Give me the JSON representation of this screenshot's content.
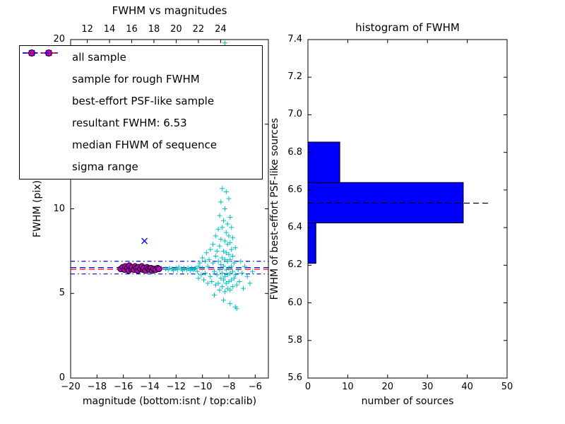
{
  "figure": {
    "background": "#ffffff"
  },
  "chart_data": [
    {
      "type": "scatter",
      "title": "FWHM vs magnitudes",
      "xlabel": "magnitude (bottom:isnt / top:calib)",
      "ylabel": "FWHM (pix)",
      "xlim": [
        -20,
        -5
      ],
      "ylim": [
        0,
        20
      ],
      "x_ticks": [
        -20,
        -18,
        -16,
        -14,
        -12,
        -10,
        -8,
        -6
      ],
      "x_tick_labels": [
        "−20",
        "−18",
        "−16",
        "−14",
        "−12",
        "−10",
        "−8",
        "−6"
      ],
      "y_ticks": [
        0,
        5,
        10,
        15,
        20
      ],
      "y_tick_labels": [
        "0",
        "5",
        "10",
        "15",
        "20"
      ],
      "top_axis_lim": [
        10.5,
        28.3
      ],
      "top_axis_ticks": [
        12,
        14,
        16,
        18,
        20,
        22,
        24
      ],
      "top_axis_tick_labels": [
        "12",
        "14",
        "16",
        "18",
        "20",
        "22",
        "24"
      ],
      "grid": false,
      "legend": {
        "position": "upper-left",
        "items": [
          {
            "label": "all sample",
            "type": "scatter-plus",
            "color": "#00bfbf"
          },
          {
            "label": "sample for rough FWHM",
            "type": "scatter-x",
            "color": "#0000ff"
          },
          {
            "label": "best-effort PSF-like sample",
            "type": "scatter-circle",
            "color": "#bf00bf",
            "edge_color": "#000000"
          },
          {
            "label": "resultant FWHM: 6.53",
            "type": "line-dashed",
            "color": "#0000ff"
          },
          {
            "label": "median FHWM of sequence",
            "type": "line-dashed",
            "color": "#ff0000"
          },
          {
            "label": "sigma range",
            "type": "line-dashdot",
            "color": "#0000ff"
          }
        ]
      },
      "lines": [
        {
          "name": "resultant FWHM",
          "y": 6.53,
          "color": "#0000ff",
          "style": "dashed"
        },
        {
          "name": "median FWHM of sequence",
          "y": 6.43,
          "color": "#ff0000",
          "style": "dashed"
        },
        {
          "name": "sigma range upper",
          "y": 6.9,
          "color": "#0000ff",
          "style": "dashdot"
        },
        {
          "name": "sigma range lower",
          "y": 6.15,
          "color": "#0000ff",
          "style": "dashdot"
        }
      ],
      "series": [
        {
          "name": "all sample",
          "marker": "plus",
          "color": "#00bfbf",
          "points": [
            [
              -16.1,
              6.4
            ],
            [
              -15.8,
              6.5
            ],
            [
              -15.5,
              6.45
            ],
            [
              -15.2,
              6.5
            ],
            [
              -14.9,
              6.4
            ],
            [
              -14.6,
              6.5
            ],
            [
              -14.3,
              6.45
            ],
            [
              -14.0,
              6.5
            ],
            [
              -13.7,
              6.4
            ],
            [
              -13.4,
              6.45
            ],
            [
              -13.1,
              6.5
            ],
            [
              -12.8,
              6.45
            ],
            [
              -12.6,
              6.4
            ],
            [
              -12.5,
              6.5
            ],
            [
              -12.3,
              6.45
            ],
            [
              -12.2,
              6.35
            ],
            [
              -12.0,
              6.5
            ],
            [
              -11.9,
              6.4
            ],
            [
              -11.8,
              6.55
            ],
            [
              -11.6,
              6.45
            ],
            [
              -11.5,
              6.35
            ],
            [
              -11.4,
              6.5
            ],
            [
              -11.2,
              6.4
            ],
            [
              -11.1,
              6.5
            ],
            [
              -11.0,
              6.45
            ],
            [
              -10.9,
              6.35
            ],
            [
              -10.8,
              6.5
            ],
            [
              -10.7,
              6.4
            ],
            [
              -10.6,
              6.45
            ],
            [
              -10.5,
              6.5
            ],
            [
              -10.4,
              6.3
            ],
            [
              -10.3,
              6.6
            ],
            [
              -10.3,
              5.9
            ],
            [
              -10.2,
              6.8
            ],
            [
              -10.1,
              6.1
            ],
            [
              -10.0,
              6.5
            ],
            [
              -10.0,
              7.1
            ],
            [
              -9.9,
              5.8
            ],
            [
              -9.8,
              6.9
            ],
            [
              -9.8,
              6.2
            ],
            [
              -9.7,
              7.4
            ],
            [
              -9.6,
              5.6
            ],
            [
              -9.6,
              6.6
            ],
            [
              -9.5,
              7.0
            ],
            [
              -9.5,
              12.6
            ],
            [
              -9.4,
              6.0
            ],
            [
              -9.4,
              7.6
            ],
            [
              -9.3,
              5.7
            ],
            [
              -9.2,
              6.8
            ],
            [
              -9.2,
              7.9
            ],
            [
              -9.1,
              6.3
            ],
            [
              -9.0,
              5.5
            ],
            [
              -9.0,
              7.2
            ],
            [
              -9.0,
              8.4
            ],
            [
              -9.1,
              4.9
            ],
            [
              -8.9,
              6.1
            ],
            [
              -8.9,
              7.5
            ],
            [
              -8.8,
              5.6
            ],
            [
              -8.8,
              6.9
            ],
            [
              -8.8,
              8.8
            ],
            [
              -8.7,
              5.2
            ],
            [
              -8.7,
              6.4
            ],
            [
              -8.7,
              7.8
            ],
            [
              -8.7,
              9.6
            ],
            [
              -8.6,
              5.9
            ],
            [
              -8.6,
              6.7
            ],
            [
              -8.6,
              8.2
            ],
            [
              -8.6,
              10.4
            ],
            [
              -8.5,
              5.4
            ],
            [
              -8.5,
              6.2
            ],
            [
              -8.5,
              7.1
            ],
            [
              -8.5,
              8.9
            ],
            [
              -8.5,
              11.2
            ],
            [
              -8.4,
              5.8
            ],
            [
              -8.4,
              6.6
            ],
            [
              -8.4,
              7.5
            ],
            [
              -8.4,
              9.3
            ],
            [
              -8.3,
              5.1
            ],
            [
              -8.3,
              6.0
            ],
            [
              -8.3,
              7.0
            ],
            [
              -8.3,
              8.1
            ],
            [
              -8.3,
              10.0
            ],
            [
              -8.2,
              5.6
            ],
            [
              -8.2,
              6.4
            ],
            [
              -8.2,
              7.4
            ],
            [
              -8.2,
              8.6
            ],
            [
              -8.2,
              11.0
            ],
            [
              -8.1,
              5.3
            ],
            [
              -8.1,
              6.1
            ],
            [
              -8.1,
              6.9
            ],
            [
              -8.1,
              7.9
            ],
            [
              -8.1,
              9.1
            ],
            [
              -8.0,
              5.7
            ],
            [
              -8.0,
              6.5
            ],
            [
              -8.0,
              7.3
            ],
            [
              -8.0,
              8.4
            ],
            [
              -8.0,
              10.6
            ],
            [
              -7.9,
              5.2
            ],
            [
              -7.9,
              6.2
            ],
            [
              -7.9,
              7.0
            ],
            [
              -7.9,
              8.0
            ],
            [
              -7.9,
              9.5
            ],
            [
              -7.8,
              5.8
            ],
            [
              -7.8,
              6.6
            ],
            [
              -7.8,
              7.6
            ],
            [
              -7.8,
              8.9
            ],
            [
              -7.7,
              5.4
            ],
            [
              -7.7,
              6.3
            ],
            [
              -7.7,
              7.2
            ],
            [
              -7.7,
              8.3
            ],
            [
              -7.6,
              5.9
            ],
            [
              -7.6,
              6.8
            ],
            [
              -7.5,
              6.1
            ],
            [
              -7.5,
              7.7
            ],
            [
              -7.4,
              5.5
            ],
            [
              -8.3,
              12.2
            ],
            [
              -8.2,
              13.0
            ],
            [
              -8.2,
              14.5
            ],
            [
              -8.1,
              12.8
            ],
            [
              -8.1,
              15.8
            ],
            [
              -8.0,
              13.6
            ],
            [
              -8.0,
              16.9
            ],
            [
              -8.0,
              19.0
            ],
            [
              -7.9,
              12.4
            ],
            [
              -7.9,
              14.0
            ],
            [
              -7.9,
              17.8
            ],
            [
              -8.3,
              19.8
            ],
            [
              -8.6,
              19.4
            ],
            [
              -7.8,
              15.2
            ],
            [
              -7.3,
              6.4
            ],
            [
              -7.2,
              5.7
            ],
            [
              -7.1,
              6.9
            ],
            [
              -7.0,
              6.2
            ],
            [
              -6.9,
              5.3
            ],
            [
              -6.8,
              6.6
            ],
            [
              -6.6,
              6.0
            ],
            [
              -6.4,
              5.6
            ],
            [
              -6.2,
              6.3
            ],
            [
              -7.5,
              4.2
            ],
            [
              -7.4,
              4.1
            ],
            [
              -8.4,
              4.6
            ],
            [
              -7.9,
              4.4
            ]
          ]
        },
        {
          "name": "sample for rough FWHM",
          "marker": "x",
          "color": "#0000ff",
          "points": [
            [
              -14.4,
              8.1
            ],
            [
              -15.3,
              6.5
            ],
            [
              -14.05,
              6.45
            ]
          ]
        },
        {
          "name": "best-effort PSF-like sample",
          "marker": "circle",
          "color": "#bf00bf",
          "edge_color": "#000000",
          "points": [
            [
              -16.2,
              6.45
            ],
            [
              -16.05,
              6.55
            ],
            [
              -15.9,
              6.4
            ],
            [
              -15.85,
              6.6
            ],
            [
              -15.7,
              6.5
            ],
            [
              -15.6,
              6.35
            ],
            [
              -15.55,
              6.65
            ],
            [
              -15.4,
              6.45
            ],
            [
              -15.35,
              6.55
            ],
            [
              -15.2,
              6.4
            ],
            [
              -15.1,
              6.6
            ],
            [
              -15.0,
              6.5
            ],
            [
              -14.9,
              6.35
            ],
            [
              -14.85,
              6.55
            ],
            [
              -14.7,
              6.45
            ],
            [
              -14.6,
              6.6
            ],
            [
              -14.5,
              6.4
            ],
            [
              -14.45,
              6.5
            ],
            [
              -14.3,
              6.35
            ],
            [
              -14.2,
              6.55
            ],
            [
              -14.1,
              6.45
            ],
            [
              -14.0,
              6.4
            ],
            [
              -13.9,
              6.5
            ],
            [
              -13.8,
              6.35
            ],
            [
              -13.7,
              6.45
            ],
            [
              -13.55,
              6.4
            ],
            [
              -13.4,
              6.5
            ],
            [
              -13.3,
              6.45
            ]
          ]
        }
      ]
    },
    {
      "type": "bar-horizontal",
      "title": "histogram of FWHM",
      "xlabel": "number of sources",
      "ylabel": "FWHM of best-effort PSF-like sources",
      "xlim": [
        0,
        50
      ],
      "ylim": [
        5.6,
        7.4
      ],
      "x_ticks": [
        0,
        10,
        20,
        30,
        40,
        50
      ],
      "x_tick_labels": [
        "0",
        "10",
        "20",
        "30",
        "40",
        "50"
      ],
      "y_ticks": [
        5.6,
        5.8,
        6.0,
        6.2,
        6.4,
        6.6,
        6.8,
        7.0,
        7.2,
        7.4
      ],
      "y_tick_labels": [
        "5.6",
        "5.8",
        "6.0",
        "6.2",
        "6.4",
        "6.6",
        "6.8",
        "7.0",
        "7.2",
        "7.4"
      ],
      "bar_color": "#0000ff",
      "bar_edge_color": "#000000",
      "bins": [
        {
          "from": 6.21,
          "to": 6.425,
          "count": 2
        },
        {
          "from": 6.425,
          "to": 6.64,
          "count": 39
        },
        {
          "from": 6.64,
          "to": 6.855,
          "count": 8
        }
      ],
      "marker_line": {
        "y": 6.53,
        "x_start": 0,
        "x_end": 46,
        "color": "#000000",
        "style": "dashed"
      }
    }
  ]
}
